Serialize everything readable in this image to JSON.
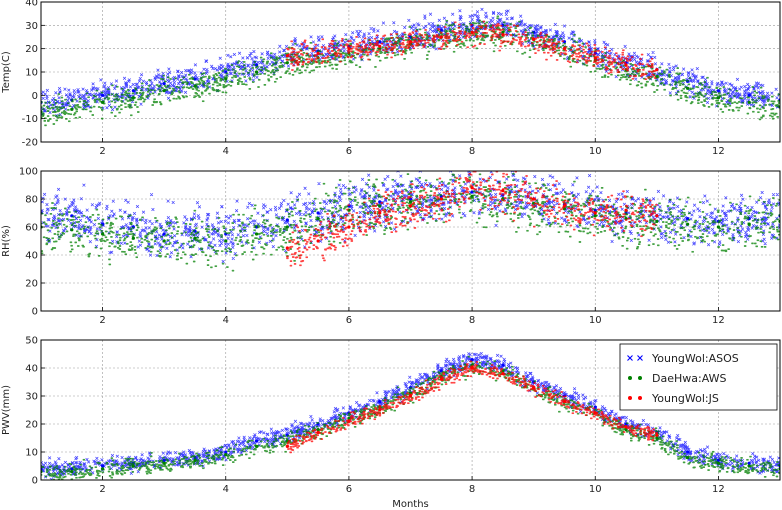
{
  "chart_data": [
    {
      "type": "scatter",
      "ylabel": "Temp(C)",
      "xlim": [
        1,
        13
      ],
      "ylim": [
        -20,
        40
      ],
      "xticks": [
        2,
        4,
        6,
        8,
        10,
        12
      ],
      "yticks": [
        -20,
        -10,
        0,
        10,
        20,
        30,
        40
      ],
      "grid": true,
      "series": [
        {
          "name": "YoungWol:ASOS",
          "color": "#0000ff",
          "marker": "x",
          "x": [
            1.0,
            1.5,
            2.0,
            2.5,
            3.0,
            3.5,
            4.0,
            4.5,
            5.0,
            5.5,
            6.0,
            6.5,
            7.0,
            7.5,
            8.0,
            8.5,
            9.0,
            9.5,
            10.0,
            10.5,
            11.0,
            11.5,
            12.0,
            12.5,
            13.0
          ],
          "y": [
            -3,
            -2,
            0,
            2,
            5,
            7,
            10,
            13,
            17,
            19,
            21,
            23,
            25,
            28,
            30,
            30,
            27,
            23,
            18,
            14,
            11,
            6,
            2,
            0,
            -2
          ]
        },
        {
          "name": "DaeHwa:AWS",
          "color": "#008000",
          "marker": "o",
          "x": [
            1.0,
            1.5,
            2.0,
            2.5,
            3.0,
            3.5,
            4.0,
            4.5,
            5.0,
            5.5,
            6.0,
            6.5,
            7.0,
            7.5,
            8.0,
            8.5,
            9.0,
            9.5,
            10.0,
            10.5,
            11.0,
            11.5,
            12.0,
            12.5,
            13.0
          ],
          "y": [
            -7,
            -6,
            -3,
            -1,
            2,
            4,
            7,
            10,
            14,
            16,
            18,
            20,
            22,
            25,
            27,
            27,
            24,
            20,
            15,
            11,
            8,
            3,
            -1,
            -3,
            -5
          ]
        },
        {
          "name": "YoungWol:JS",
          "color": "#ff0000",
          "marker": "o",
          "x": [
            5.0,
            5.5,
            6.0,
            6.5,
            7.0,
            7.5,
            8.0,
            8.5,
            9.0,
            9.5,
            10.0,
            10.5,
            11.0
          ],
          "y": [
            17,
            18,
            20,
            21,
            23,
            25,
            27,
            26,
            24,
            20,
            16,
            13,
            11
          ]
        }
      ]
    },
    {
      "type": "scatter",
      "ylabel": "RH(%)",
      "xlim": [
        1,
        13
      ],
      "ylim": [
        0,
        100
      ],
      "xticks": [
        2,
        4,
        6,
        8,
        10,
        12
      ],
      "yticks": [
        0,
        20,
        40,
        60,
        80,
        100
      ],
      "grid": true,
      "series": [
        {
          "name": "YoungWol:ASOS",
          "color": "#0000ff",
          "marker": "x",
          "x": [
            1.0,
            1.5,
            2.0,
            2.5,
            3.0,
            3.5,
            4.0,
            4.5,
            5.0,
            5.5,
            6.0,
            6.5,
            7.0,
            7.5,
            8.0,
            8.5,
            9.0,
            9.5,
            10.0,
            10.5,
            11.0,
            11.5,
            12.0,
            12.5,
            13.0
          ],
          "y": [
            70,
            68,
            62,
            60,
            55,
            57,
            55,
            60,
            65,
            70,
            75,
            78,
            80,
            82,
            85,
            83,
            80,
            76,
            72,
            70,
            68,
            66,
            64,
            66,
            68
          ]
        },
        {
          "name": "DaeHwa:AWS",
          "color": "#008000",
          "marker": "o",
          "x": [
            1.0,
            1.5,
            2.0,
            2.5,
            3.0,
            3.5,
            4.0,
            4.5,
            5.0,
            5.5,
            6.0,
            6.5,
            7.0,
            7.5,
            8.0,
            8.5,
            9.0,
            9.5,
            10.0,
            10.5,
            11.0,
            11.5,
            12.0,
            12.5,
            13.0
          ],
          "y": [
            60,
            58,
            55,
            52,
            50,
            52,
            50,
            55,
            60,
            66,
            72,
            75,
            78,
            80,
            82,
            80,
            77,
            73,
            68,
            66,
            64,
            62,
            60,
            62,
            64
          ]
        },
        {
          "name": "YoungWol:JS",
          "color": "#ff0000",
          "marker": "o",
          "x": [
            5.0,
            5.5,
            6.0,
            6.5,
            7.0,
            7.5,
            8.0,
            8.5,
            9.0,
            9.5,
            10.0,
            10.5,
            11.0
          ],
          "y": [
            45,
            50,
            60,
            70,
            75,
            80,
            88,
            86,
            80,
            75,
            70,
            72,
            68
          ]
        }
      ]
    },
    {
      "type": "scatter",
      "ylabel": "PWV(mm)",
      "xlabel": "Months",
      "xlim": [
        1,
        13
      ],
      "ylim": [
        0,
        50
      ],
      "xticks": [
        2,
        4,
        6,
        8,
        10,
        12
      ],
      "yticks": [
        0,
        10,
        20,
        30,
        40,
        50
      ],
      "grid": true,
      "legend": "top-right",
      "series": [
        {
          "name": "YoungWol:ASOS",
          "color": "#0000ff",
          "marker": "x",
          "x": [
            1.0,
            1.5,
            2.0,
            2.5,
            3.0,
            3.5,
            4.0,
            4.5,
            5.0,
            5.5,
            6.0,
            6.5,
            7.0,
            7.5,
            8.0,
            8.5,
            9.0,
            9.5,
            10.0,
            10.5,
            11.0,
            11.5,
            12.0,
            12.5,
            13.0
          ],
          "y": [
            4,
            4,
            5,
            6,
            7,
            8,
            10,
            14,
            16,
            20,
            24,
            28,
            33,
            39,
            43,
            41,
            35,
            30,
            26,
            20,
            17,
            10,
            7,
            6,
            5
          ]
        },
        {
          "name": "DaeHwa:AWS",
          "color": "#008000",
          "marker": "o",
          "x": [
            1.0,
            1.5,
            2.0,
            2.5,
            3.0,
            3.5,
            4.0,
            4.5,
            5.0,
            5.5,
            6.0,
            6.5,
            7.0,
            7.5,
            8.0,
            8.5,
            9.0,
            9.5,
            10.0,
            10.5,
            11.0,
            11.5,
            12.0,
            12.5,
            13.0
          ],
          "y": [
            3,
            3,
            4,
            5,
            6,
            7,
            9,
            12,
            14,
            18,
            22,
            26,
            31,
            37,
            41,
            39,
            33,
            28,
            24,
            18,
            15,
            8,
            6,
            5,
            4
          ]
        },
        {
          "name": "YoungWol:JS",
          "color": "#ff0000",
          "marker": "o",
          "x": [
            5.0,
            5.5,
            6.0,
            6.5,
            7.0,
            7.5,
            8.0,
            8.5,
            9.0,
            9.5,
            10.0,
            10.5,
            11.0
          ],
          "y": [
            12,
            17,
            21,
            25,
            30,
            36,
            40,
            38,
            33,
            28,
            24,
            19,
            16
          ]
        }
      ]
    }
  ]
}
